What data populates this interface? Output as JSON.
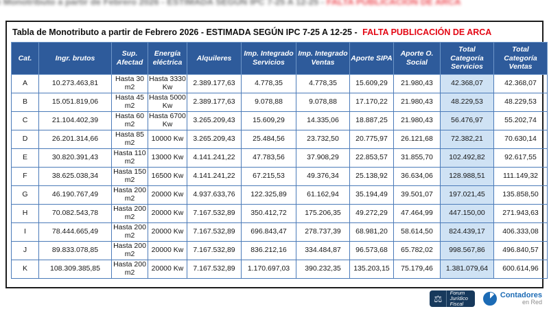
{
  "blur_strip": {
    "main": "de Monotributo a partir de Febrero 2026 - ESTIMADA SEGÚN IPC 7-25 A 12-25 -",
    "alert": "FALTA PUBLICACIÓN DE ARCA"
  },
  "title": {
    "main": "Tabla de Monotributo a partir de Febrero 2026 - ESTIMADA SEGÚN IPC 7-25 A 12-25 -",
    "alert": "FALTA PUBLICACIÓN DE ARCA"
  },
  "colors": {
    "header_bg": "#2e5b9b",
    "highlight_col_bg": "#cfe2f4",
    "grid": "#4a7ab8",
    "alert_text": "#e30613"
  },
  "chart_data": {
    "type": "table",
    "title": "Tabla de Monotributo a partir de Febrero 2026 - ESTIMADA SEGÚN IPC 7-25 A 12-25 - FALTA PUBLICACIÓN DE ARCA",
    "columns": [
      "Cat.",
      "Ingr. brutos",
      "Sup. Afectad",
      "Energía eléctrica",
      "Alquileres",
      "Imp. Integrado Servicios",
      "Imp. Integrado Ventas",
      "Aporte SIPA",
      "Aporte O. Social",
      "Total Categoría Servicios",
      "Total Categoría Ventas"
    ],
    "highlight_column_index": 9,
    "rows": [
      [
        "A",
        "10.273.463,81",
        "Hasta 30 m2",
        "Hasta 3330 Kw",
        "2.389.177,63",
        "4.778,35",
        "4.778,35",
        "15.609,29",
        "21.980,43",
        "42.368,07",
        "42.368,07"
      ],
      [
        "B",
        "15.051.819,06",
        "Hasta 45 m2",
        "Hasta 5000 Kw",
        "2.389.177,63",
        "9.078,88",
        "9.078,88",
        "17.170,22",
        "21.980,43",
        "48.229,53",
        "48.229,53"
      ],
      [
        "C",
        "21.104.402,39",
        "Hasta 60 m2",
        "Hasta 6700 Kw",
        "3.265.209,43",
        "15.609,29",
        "14.335,06",
        "18.887,25",
        "21.980,43",
        "56.476,97",
        "55.202,74"
      ],
      [
        "D",
        "26.201.314,66",
        "Hasta 85 m2",
        "10000 Kw",
        "3.265.209,43",
        "25.484,56",
        "23.732,50",
        "20.775,97",
        "26.121,68",
        "72.382,21",
        "70.630,14"
      ],
      [
        "E",
        "30.820.391,43",
        "Hasta 110 m2",
        "13000 Kw",
        "4.141.241,22",
        "47.783,56",
        "37.908,29",
        "22.853,57",
        "31.855,70",
        "102.492,82",
        "92.617,55"
      ],
      [
        "F",
        "38.625.038,34",
        "Hasta 150 m2",
        "16500 Kw",
        "4.141.241,22",
        "67.215,53",
        "49.376,34",
        "25.138,92",
        "36.634,06",
        "128.988,51",
        "111.149,32"
      ],
      [
        "G",
        "46.190.767,49",
        "Hasta 200 m2",
        "20000 Kw",
        "4.937.633,76",
        "122.325,89",
        "61.162,94",
        "35.194,49",
        "39.501,07",
        "197.021,45",
        "135.858,50"
      ],
      [
        "H",
        "70.082.543,78",
        "Hasta 200 m2",
        "20000 Kw",
        "7.167.532,89",
        "350.412,72",
        "175.206,35",
        "49.272,29",
        "47.464,99",
        "447.150,00",
        "271.943,63"
      ],
      [
        "I",
        "78.444.665,49",
        "Hasta 200 m2",
        "20000 Kw",
        "7.167.532,89",
        "696.843,47",
        "278.737,39",
        "68.981,20",
        "58.614,50",
        "824.439,17",
        "406.333,08"
      ],
      [
        "J",
        "89.833.078,85",
        "Hasta 200 m2",
        "20000 Kw",
        "7.167.532,89",
        "836.212,16",
        "334.484,87",
        "96.573,68",
        "65.782,02",
        "998.567,86",
        "496.840,57"
      ],
      [
        "K",
        "108.309.385,85",
        "Hasta 200 m2",
        "20000 Kw",
        "7.167.532,89",
        "1.170.697,03",
        "390.232,35",
        "135.203,15",
        "75.179,46",
        "1.381.079,64",
        "600.614,96"
      ]
    ]
  },
  "footer": {
    "forum_logo": {
      "line1": "Forum",
      "line2": "Jurídico",
      "line3": "Fiscal"
    },
    "contadores_logo": {
      "line1": "Contadores",
      "line2": "en Red"
    },
    "scales_icon": "⚖"
  }
}
